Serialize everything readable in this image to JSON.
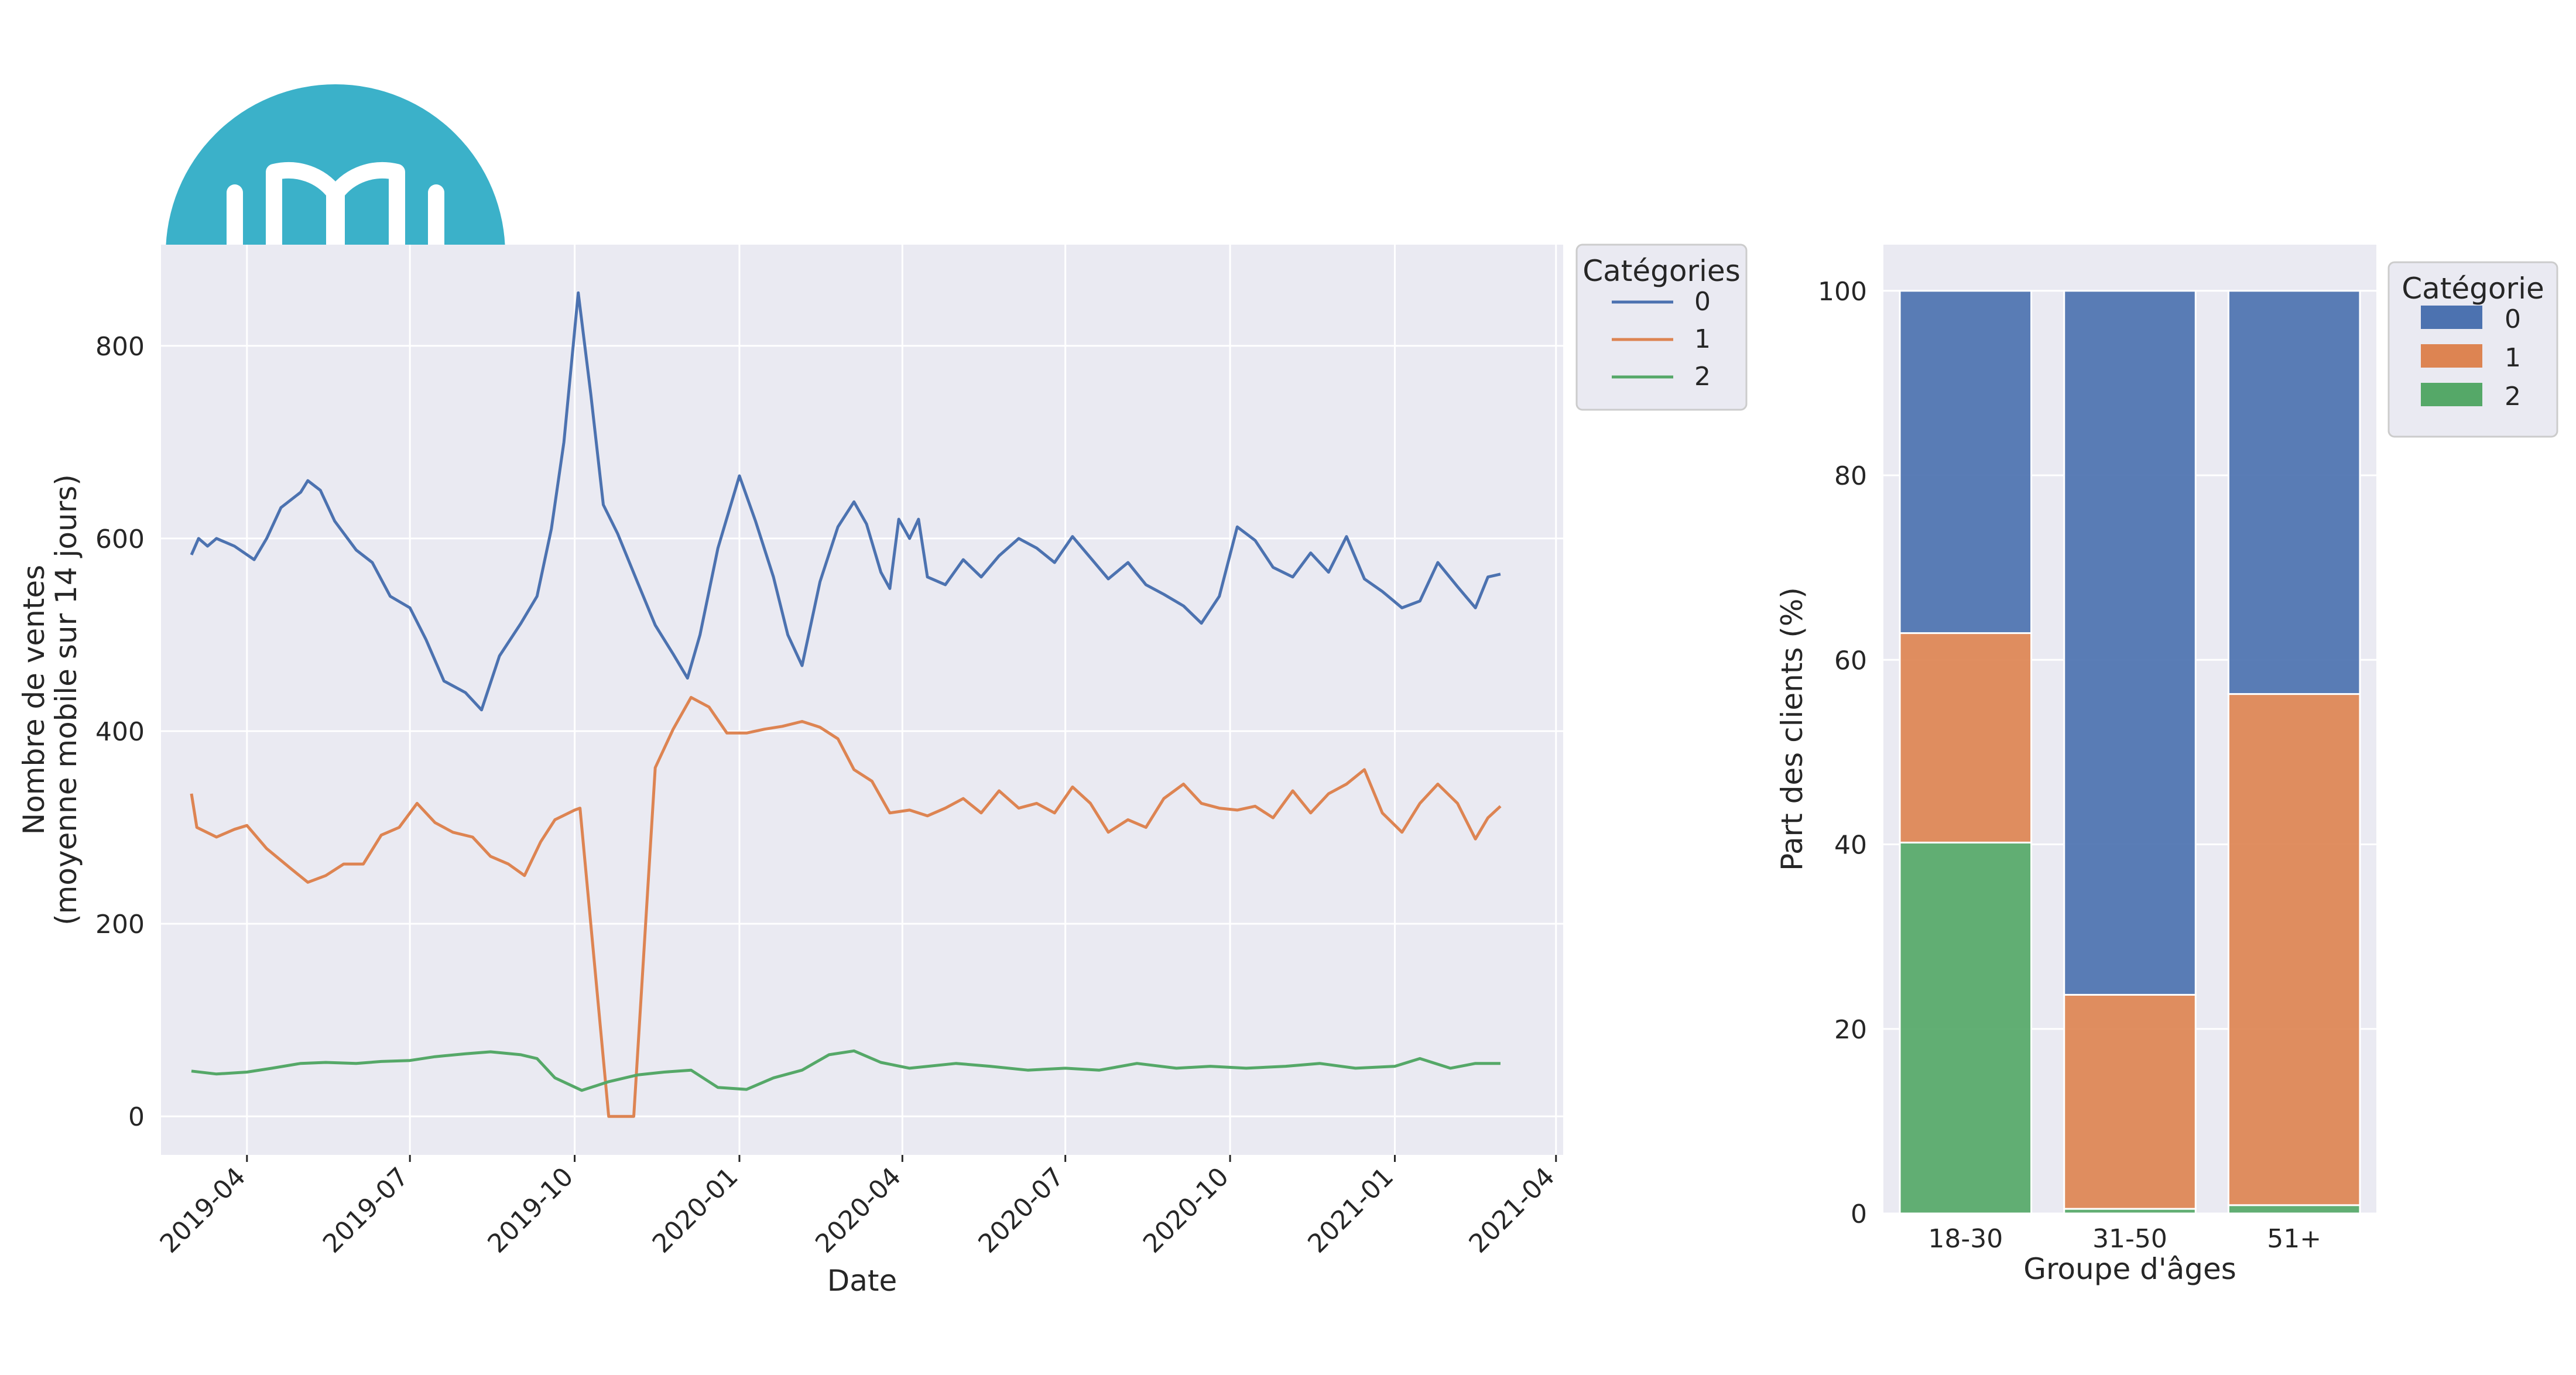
{
  "colors": {
    "series0": "#4c72b0",
    "series1": "#dd8452",
    "series2": "#55a868",
    "plot_bg": "#eaeaf2",
    "grid": "#ffffff",
    "icon_bg": "#3bb1c9"
  },
  "icon": {
    "name": "open-book-icon"
  },
  "chart_data": [
    {
      "type": "line",
      "xlabel": "Date",
      "ylabel_line1": "Nombre de ventes",
      "ylabel_line2": "(moyenne mobile sur 14 jours)",
      "x_ticks": [
        "2019-04",
        "2019-07",
        "2019-10",
        "2020-01",
        "2020-04",
        "2020-07",
        "2020-10",
        "2021-01",
        "2021-04"
      ],
      "y_ticks": [
        "0",
        "200",
        "400",
        "600",
        "800"
      ],
      "xlim": [
        "2019-02-12",
        "2021-04-05"
      ],
      "ylim": [
        -40,
        905
      ],
      "legend_title": "Catégories",
      "legend_placement": "outside-top-right",
      "grid": true,
      "series": [
        {
          "name": "0",
          "points": [
            [
              "2019-03-01",
              583
            ],
            [
              "2019-03-05",
              600
            ],
            [
              "2019-03-10",
              592
            ],
            [
              "2019-03-15",
              600
            ],
            [
              "2019-03-25",
              592
            ],
            [
              "2019-04-05",
              578
            ],
            [
              "2019-04-12",
              600
            ],
            [
              "2019-04-20",
              632
            ],
            [
              "2019-05-01",
              648
            ],
            [
              "2019-05-05",
              660
            ],
            [
              "2019-05-12",
              650
            ],
            [
              "2019-05-20",
              618
            ],
            [
              "2019-06-01",
              588
            ],
            [
              "2019-06-10",
              575
            ],
            [
              "2019-06-20",
              540
            ],
            [
              "2019-07-01",
              528
            ],
            [
              "2019-07-10",
              495
            ],
            [
              "2019-07-20",
              452
            ],
            [
              "2019-08-01",
              440
            ],
            [
              "2019-08-10",
              422
            ],
            [
              "2019-08-20",
              478
            ],
            [
              "2019-09-01",
              512
            ],
            [
              "2019-09-10",
              540
            ],
            [
              "2019-09-18",
              610
            ],
            [
              "2019-09-25",
              700
            ],
            [
              "2019-10-03",
              855
            ],
            [
              "2019-10-10",
              750
            ],
            [
              "2019-10-17",
              635
            ],
            [
              "2019-10-25",
              605
            ],
            [
              "2019-11-05",
              555
            ],
            [
              "2019-11-15",
              510
            ],
            [
              "2019-11-25",
              480
            ],
            [
              "2019-12-03",
              455
            ],
            [
              "2019-12-10",
              500
            ],
            [
              "2019-12-20",
              590
            ],
            [
              "2020-01-01",
              665
            ],
            [
              "2020-01-10",
              618
            ],
            [
              "2020-01-20",
              560
            ],
            [
              "2020-01-28",
              500
            ],
            [
              "2020-02-05",
              468
            ],
            [
              "2020-02-15",
              555
            ],
            [
              "2020-02-25",
              612
            ],
            [
              "2020-03-05",
              638
            ],
            [
              "2020-03-12",
              615
            ],
            [
              "2020-03-20",
              565
            ],
            [
              "2020-03-25",
              548
            ],
            [
              "2020-03-30",
              620
            ],
            [
              "2020-04-05",
              600
            ],
            [
              "2020-04-10",
              620
            ],
            [
              "2020-04-15",
              560
            ],
            [
              "2020-04-25",
              552
            ],
            [
              "2020-05-05",
              578
            ],
            [
              "2020-05-15",
              560
            ],
            [
              "2020-05-25",
              582
            ],
            [
              "2020-06-05",
              600
            ],
            [
              "2020-06-15",
              590
            ],
            [
              "2020-06-25",
              575
            ],
            [
              "2020-07-05",
              602
            ],
            [
              "2020-07-15",
              580
            ],
            [
              "2020-07-25",
              558
            ],
            [
              "2020-08-05",
              575
            ],
            [
              "2020-08-15",
              552
            ],
            [
              "2020-08-25",
              542
            ],
            [
              "2020-09-05",
              530
            ],
            [
              "2020-09-15",
              512
            ],
            [
              "2020-09-25",
              540
            ],
            [
              "2020-10-05",
              612
            ],
            [
              "2020-10-15",
              598
            ],
            [
              "2020-10-25",
              570
            ],
            [
              "2020-11-05",
              560
            ],
            [
              "2020-11-15",
              585
            ],
            [
              "2020-11-25",
              565
            ],
            [
              "2020-12-05",
              602
            ],
            [
              "2020-12-15",
              558
            ],
            [
              "2020-12-25",
              545
            ],
            [
              "2021-01-05",
              528
            ],
            [
              "2021-01-15",
              535
            ],
            [
              "2021-01-25",
              575
            ],
            [
              "2021-02-05",
              550
            ],
            [
              "2021-02-15",
              528
            ],
            [
              "2021-02-22",
              560
            ],
            [
              "2021-03-01",
              563
            ]
          ]
        },
        {
          "name": "1",
          "points": [
            [
              "2019-03-01",
              335
            ],
            [
              "2019-03-04",
              300
            ],
            [
              "2019-03-15",
              290
            ],
            [
              "2019-03-25",
              298
            ],
            [
              "2019-04-01",
              302
            ],
            [
              "2019-04-12",
              278
            ],
            [
              "2019-04-25",
              258
            ],
            [
              "2019-05-05",
              243
            ],
            [
              "2019-05-15",
              250
            ],
            [
              "2019-05-25",
              262
            ],
            [
              "2019-06-05",
              262
            ],
            [
              "2019-06-15",
              292
            ],
            [
              "2019-06-25",
              300
            ],
            [
              "2019-07-05",
              325
            ],
            [
              "2019-07-15",
              305
            ],
            [
              "2019-07-25",
              295
            ],
            [
              "2019-08-05",
              290
            ],
            [
              "2019-08-15",
              270
            ],
            [
              "2019-08-25",
              262
            ],
            [
              "2019-09-03",
              250
            ],
            [
              "2019-09-12",
              285
            ],
            [
              "2019-09-20",
              308
            ],
            [
              "2019-10-01",
              318
            ],
            [
              "2019-10-04",
              320
            ],
            [
              "2019-10-20",
              0
            ],
            [
              "2019-11-03",
              0
            ],
            [
              "2019-11-15",
              362
            ],
            [
              "2019-11-25",
              402
            ],
            [
              "2019-12-05",
              435
            ],
            [
              "2019-12-15",
              425
            ],
            [
              "2019-12-25",
              398
            ],
            [
              "2020-01-05",
              398
            ],
            [
              "2020-01-15",
              402
            ],
            [
              "2020-01-25",
              405
            ],
            [
              "2020-02-05",
              410
            ],
            [
              "2020-02-15",
              404
            ],
            [
              "2020-02-25",
              392
            ],
            [
              "2020-03-05",
              360
            ],
            [
              "2020-03-15",
              348
            ],
            [
              "2020-03-25",
              315
            ],
            [
              "2020-04-05",
              318
            ],
            [
              "2020-04-15",
              312
            ],
            [
              "2020-04-25",
              320
            ],
            [
              "2020-05-05",
              330
            ],
            [
              "2020-05-15",
              315
            ],
            [
              "2020-05-25",
              338
            ],
            [
              "2020-06-05",
              320
            ],
            [
              "2020-06-15",
              325
            ],
            [
              "2020-06-25",
              315
            ],
            [
              "2020-07-05",
              342
            ],
            [
              "2020-07-15",
              325
            ],
            [
              "2020-07-25",
              295
            ],
            [
              "2020-08-05",
              308
            ],
            [
              "2020-08-15",
              300
            ],
            [
              "2020-08-25",
              330
            ],
            [
              "2020-09-05",
              345
            ],
            [
              "2020-09-15",
              325
            ],
            [
              "2020-09-25",
              320
            ],
            [
              "2020-10-05",
              318
            ],
            [
              "2020-10-15",
              322
            ],
            [
              "2020-10-25",
              310
            ],
            [
              "2020-11-05",
              338
            ],
            [
              "2020-11-15",
              315
            ],
            [
              "2020-11-25",
              335
            ],
            [
              "2020-12-05",
              345
            ],
            [
              "2020-12-15",
              360
            ],
            [
              "2020-12-25",
              315
            ],
            [
              "2021-01-05",
              295
            ],
            [
              "2021-01-15",
              325
            ],
            [
              "2021-01-25",
              345
            ],
            [
              "2021-02-05",
              325
            ],
            [
              "2021-02-15",
              288
            ],
            [
              "2021-02-22",
              310
            ],
            [
              "2021-03-01",
              322
            ]
          ]
        },
        {
          "name": "2",
          "points": [
            [
              "2019-03-01",
              47
            ],
            [
              "2019-03-15",
              44
            ],
            [
              "2019-04-01",
              46
            ],
            [
              "2019-04-15",
              50
            ],
            [
              "2019-05-01",
              55
            ],
            [
              "2019-05-15",
              56
            ],
            [
              "2019-06-01",
              55
            ],
            [
              "2019-06-15",
              57
            ],
            [
              "2019-07-01",
              58
            ],
            [
              "2019-07-15",
              62
            ],
            [
              "2019-08-01",
              65
            ],
            [
              "2019-08-15",
              67
            ],
            [
              "2019-09-01",
              64
            ],
            [
              "2019-09-10",
              60
            ],
            [
              "2019-09-20",
              40
            ],
            [
              "2019-10-05",
              27
            ],
            [
              "2019-10-20",
              36
            ],
            [
              "2019-11-05",
              43
            ],
            [
              "2019-11-20",
              46
            ],
            [
              "2019-12-05",
              48
            ],
            [
              "2019-12-20",
              30
            ],
            [
              "2020-01-05",
              28
            ],
            [
              "2020-01-20",
              40
            ],
            [
              "2020-02-05",
              48
            ],
            [
              "2020-02-20",
              64
            ],
            [
              "2020-03-05",
              68
            ],
            [
              "2020-03-20",
              56
            ],
            [
              "2020-04-05",
              50
            ],
            [
              "2020-05-01",
              55
            ],
            [
              "2020-05-20",
              52
            ],
            [
              "2020-06-10",
              48
            ],
            [
              "2020-07-01",
              50
            ],
            [
              "2020-07-20",
              48
            ],
            [
              "2020-08-10",
              55
            ],
            [
              "2020-09-01",
              50
            ],
            [
              "2020-09-20",
              52
            ],
            [
              "2020-10-10",
              50
            ],
            [
              "2020-11-01",
              52
            ],
            [
              "2020-11-20",
              55
            ],
            [
              "2020-12-10",
              50
            ],
            [
              "2021-01-01",
              52
            ],
            [
              "2021-01-15",
              60
            ],
            [
              "2021-02-01",
              50
            ],
            [
              "2021-02-15",
              55
            ],
            [
              "2021-03-01",
              55
            ]
          ]
        }
      ]
    },
    {
      "type": "bar",
      "stacked": true,
      "xlabel": "Groupe d'âges",
      "ylabel": "Part des clients (%)",
      "categories": [
        "18-30",
        "31-50",
        "51+"
      ],
      "y_ticks": [
        "0",
        "20",
        "40",
        "60",
        "80",
        "100"
      ],
      "ylim": [
        0,
        105
      ],
      "legend_title": "Catégorie",
      "legend_placement": "outside-top-right",
      "grid": true,
      "series": [
        {
          "name": "2",
          "values": [
            40.2,
            0.5,
            0.9
          ]
        },
        {
          "name": "1",
          "values": [
            22.7,
            23.2,
            55.4
          ]
        },
        {
          "name": "0",
          "values": [
            37.1,
            76.3,
            43.7
          ]
        }
      ]
    }
  ]
}
